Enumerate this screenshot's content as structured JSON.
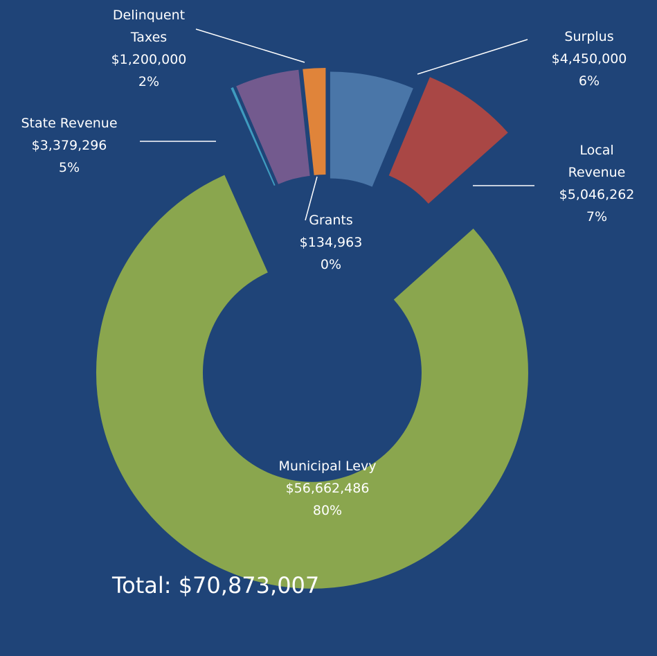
{
  "chart_data": {
    "type": "donut",
    "categories": [
      "Surplus",
      "Local Revenue",
      "Municipal Levy",
      "Grants",
      "State Revenue",
      "Delinquent Taxes"
    ],
    "values": [
      4450000,
      5046262,
      56662486,
      134963,
      3379296,
      1200000
    ],
    "value_labels": [
      "$4,450,000",
      "$5,046,262",
      "$56,662,486",
      "$134,963",
      "$3,379,296",
      "$1,200,000"
    ],
    "percent_labels": [
      "6%",
      "7%",
      "80%",
      "0%",
      "5%",
      "2%"
    ],
    "colors": [
      "#4a76a8",
      "#a94745",
      "#8aa64e",
      "#3f9bbf",
      "#735a8e",
      "#e0843a"
    ],
    "total": "Total: $70,873,007"
  }
}
